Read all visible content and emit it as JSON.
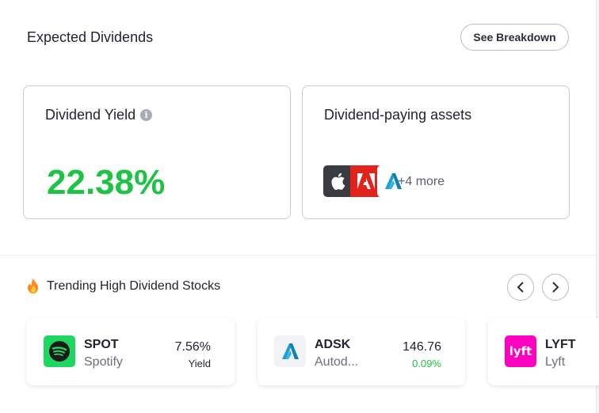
{
  "header": {
    "title": "Expected Dividends",
    "breakdown_button": "See Breakdown"
  },
  "yield_card": {
    "title": "Dividend Yield",
    "info_icon": "info-icon",
    "value": "22.38%"
  },
  "assets_card": {
    "title": "Dividend-paying assets",
    "logos": [
      "apple-logo",
      "adobe-logo",
      "autodesk-logo"
    ],
    "more": "+4 more"
  },
  "trending": {
    "title": "Trending High Dividend Stocks",
    "icon": "fire-icon",
    "stocks": [
      {
        "ticker": "SPOT",
        "name": "Spotify",
        "metric": "7.56%",
        "sub": "Yield",
        "sub_color": "#1f2230",
        "logo": "spotify-logo"
      },
      {
        "ticker": "ADSK",
        "name": "Autod...",
        "metric": "146.76",
        "sub": "0.09%",
        "sub_color": "#1ec244",
        "logo": "autodesk-logo"
      },
      {
        "ticker": "LYFT",
        "name": "Lyft",
        "metric": "",
        "sub": "",
        "sub_color": "#1f2230",
        "logo": "lyft-logo"
      }
    ]
  },
  "colors": {
    "yield_green": "#1ec244",
    "spotify_green": "#1ed760",
    "lyft_pink": "#ff00bf",
    "adobe_red": "#e3231b"
  }
}
